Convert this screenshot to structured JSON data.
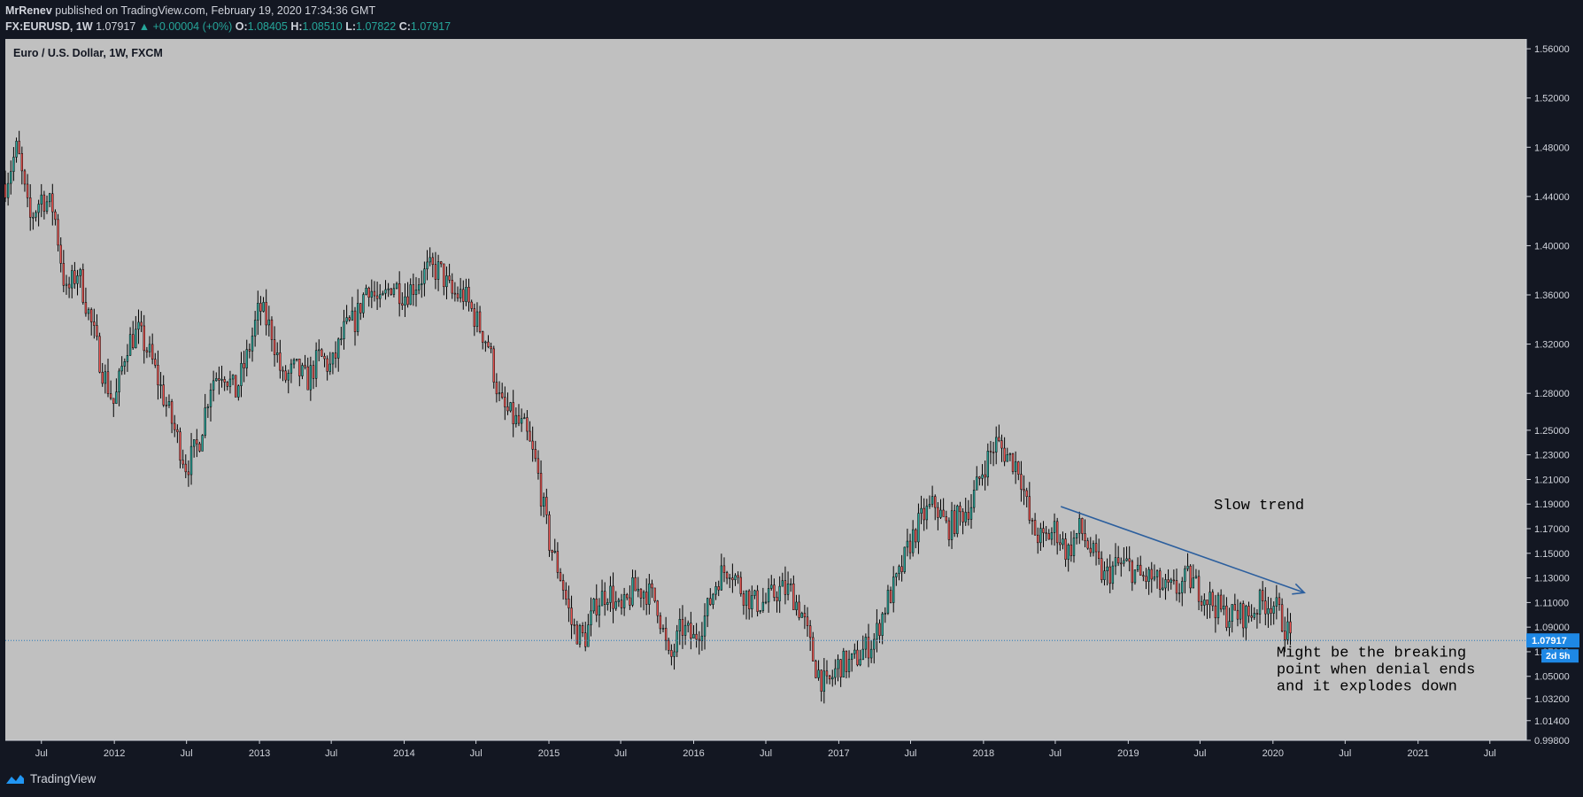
{
  "header": {
    "publisher_user": "MrRenev",
    "publisher_text": "published on TradingView.com, February 19, 2020 17:34:36 GMT",
    "symbol": "FX:EURUSD, 1W",
    "last": "1.07917",
    "change": "▲ +0.00004 (+0%)",
    "o_label": "O:",
    "o_value": "1.08405",
    "h_label": "H:",
    "h_value": "1.08510",
    "l_label": "L:",
    "l_value": "1.07822",
    "c_label": "C:",
    "c_value": "1.07917"
  },
  "footer": {
    "brand": "TradingView"
  },
  "colors": {
    "background": "#131722",
    "plot_background": "#c0c0c0",
    "text": "#d1d4dc",
    "up_candle": "#26a69a",
    "down_candle": "#ef5350",
    "candle_outline": "#000000",
    "trend_line": "#2c5f9e",
    "price_label": "#1e88e5"
  },
  "chart_data": {
    "type": "candlestick",
    "title": "Euro / U.S. Dollar, 1W, FXCM",
    "ylim": [
      0.998,
      1.568
    ],
    "y_ticks": [
      "1.56000",
      "1.52000",
      "1.48000",
      "1.44000",
      "1.40000",
      "1.36000",
      "1.32000",
      "1.28000",
      "1.25000",
      "1.23000",
      "1.21000",
      "1.19000",
      "1.17000",
      "1.15000",
      "1.13000",
      "1.11000",
      "1.09000",
      "1.07000",
      "1.05000",
      "1.03200",
      "1.01400",
      "0.99800"
    ],
    "x_ticks": [
      "Jul",
      "2012",
      "Jul",
      "2013",
      "Jul",
      "2014",
      "Jul",
      "2015",
      "Jul",
      "2016",
      "Jul",
      "2017",
      "Jul",
      "2018",
      "Jul",
      "2019",
      "Jul",
      "2020",
      "Jul",
      "2021",
      "Jul"
    ],
    "x_range": [
      "2011-04-01",
      "2021-10-01"
    ],
    "current_price": {
      "value": "1.07917",
      "countdown": "2d 5h"
    },
    "price_path": [
      [
        "2011-04-01",
        1.45
      ],
      [
        "2011-05-01",
        1.48
      ],
      [
        "2011-06-01",
        1.42
      ],
      [
        "2011-07-01",
        1.44
      ],
      [
        "2011-08-01",
        1.43
      ],
      [
        "2011-09-01",
        1.36
      ],
      [
        "2011-10-01",
        1.38
      ],
      [
        "2011-11-01",
        1.34
      ],
      [
        "2011-12-01",
        1.3
      ],
      [
        "2012-01-01",
        1.27
      ],
      [
        "2012-02-01",
        1.32
      ],
      [
        "2012-03-01",
        1.33
      ],
      [
        "2012-04-01",
        1.31
      ],
      [
        "2012-05-01",
        1.28
      ],
      [
        "2012-06-01",
        1.25
      ],
      [
        "2012-07-01",
        1.22
      ],
      [
        "2012-08-01",
        1.24
      ],
      [
        "2012-09-01",
        1.29
      ],
      [
        "2012-10-01",
        1.3
      ],
      [
        "2012-11-01",
        1.28
      ],
      [
        "2012-12-01",
        1.31
      ],
      [
        "2013-01-01",
        1.35
      ],
      [
        "2013-02-01",
        1.33
      ],
      [
        "2013-03-01",
        1.29
      ],
      [
        "2013-04-01",
        1.3
      ],
      [
        "2013-05-01",
        1.29
      ],
      [
        "2013-06-01",
        1.31
      ],
      [
        "2013-07-01",
        1.3
      ],
      [
        "2013-08-01",
        1.33
      ],
      [
        "2013-09-01",
        1.34
      ],
      [
        "2013-10-01",
        1.37
      ],
      [
        "2013-11-01",
        1.35
      ],
      [
        "2013-12-01",
        1.37
      ],
      [
        "2014-01-01",
        1.36
      ],
      [
        "2014-02-01",
        1.37
      ],
      [
        "2014-03-01",
        1.38
      ],
      [
        "2014-04-01",
        1.38
      ],
      [
        "2014-05-01",
        1.36
      ],
      [
        "2014-06-01",
        1.36
      ],
      [
        "2014-07-01",
        1.34
      ],
      [
        "2014-08-01",
        1.32
      ],
      [
        "2014-09-01",
        1.27
      ],
      [
        "2014-10-01",
        1.26
      ],
      [
        "2014-11-01",
        1.25
      ],
      [
        "2014-12-01",
        1.22
      ],
      [
        "2015-01-01",
        1.16
      ],
      [
        "2015-02-01",
        1.13
      ],
      [
        "2015-03-01",
        1.09
      ],
      [
        "2015-04-01",
        1.08
      ],
      [
        "2015-05-01",
        1.11
      ],
      [
        "2015-06-01",
        1.12
      ],
      [
        "2015-07-01",
        1.1
      ],
      [
        "2015-08-01",
        1.12
      ],
      [
        "2015-09-01",
        1.12
      ],
      [
        "2015-10-01",
        1.11
      ],
      [
        "2015-11-01",
        1.06
      ],
      [
        "2015-12-01",
        1.09
      ],
      [
        "2016-01-01",
        1.08
      ],
      [
        "2016-02-01",
        1.1
      ],
      [
        "2016-03-01",
        1.13
      ],
      [
        "2016-04-01",
        1.14
      ],
      [
        "2016-05-01",
        1.12
      ],
      [
        "2016-06-01",
        1.11
      ],
      [
        "2016-07-01",
        1.11
      ],
      [
        "2016-08-01",
        1.12
      ],
      [
        "2016-09-01",
        1.12
      ],
      [
        "2016-10-01",
        1.1
      ],
      [
        "2016-11-01",
        1.06
      ],
      [
        "2016-12-01",
        1.04
      ],
      [
        "2017-01-01",
        1.06
      ],
      [
        "2017-02-01",
        1.06
      ],
      [
        "2017-03-01",
        1.07
      ],
      [
        "2017-04-01",
        1.08
      ],
      [
        "2017-05-01",
        1.11
      ],
      [
        "2017-06-01",
        1.13
      ],
      [
        "2017-07-01",
        1.16
      ],
      [
        "2017-08-01",
        1.18
      ],
      [
        "2017-09-01",
        1.19
      ],
      [
        "2017-10-01",
        1.17
      ],
      [
        "2017-11-01",
        1.18
      ],
      [
        "2017-12-01",
        1.19
      ],
      [
        "2018-01-01",
        1.22
      ],
      [
        "2018-02-01",
        1.24
      ],
      [
        "2018-03-01",
        1.23
      ],
      [
        "2018-04-01",
        1.22
      ],
      [
        "2018-05-01",
        1.17
      ],
      [
        "2018-06-01",
        1.16
      ],
      [
        "2018-07-01",
        1.17
      ],
      [
        "2018-08-01",
        1.15
      ],
      [
        "2018-09-01",
        1.17
      ],
      [
        "2018-10-01",
        1.15
      ],
      [
        "2018-11-01",
        1.13
      ],
      [
        "2018-12-01",
        1.14
      ],
      [
        "2019-01-01",
        1.14
      ],
      [
        "2019-02-01",
        1.13
      ],
      [
        "2019-03-01",
        1.13
      ],
      [
        "2019-04-01",
        1.12
      ],
      [
        "2019-05-01",
        1.12
      ],
      [
        "2019-06-01",
        1.13
      ],
      [
        "2019-07-01",
        1.12
      ],
      [
        "2019-08-01",
        1.11
      ],
      [
        "2019-09-01",
        1.1
      ],
      [
        "2019-10-01",
        1.1
      ],
      [
        "2019-11-01",
        1.1
      ],
      [
        "2019-12-01",
        1.11
      ],
      [
        "2020-01-01",
        1.11
      ],
      [
        "2020-02-01",
        1.09
      ],
      [
        "2020-02-17",
        1.08
      ]
    ],
    "trend_line": {
      "label": "Slow trend",
      "start": [
        "2018-07-15",
        1.188
      ],
      "end": [
        "2020-03-20",
        1.118
      ]
    },
    "annotation": {
      "lines": [
        "Might be the breaking",
        "point when denial ends",
        "and it explodes down"
      ],
      "anchor": [
        "2020-01-10",
        1.066
      ]
    }
  }
}
